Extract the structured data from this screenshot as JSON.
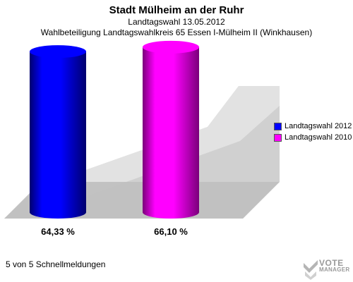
{
  "header": {
    "title": "Stadt Mülheim an der Ruhr",
    "subtitle1": "Landtagswahl 13.05.2012",
    "subtitle2": "Wahlbeteiligung Landtagswahlkreis 65  Essen I-Mülheim II (Winkhausen)"
  },
  "chart_data": {
    "type": "bar",
    "categories": [
      "Landtagswahl 2012",
      "Landtagswahl 2010"
    ],
    "series": [
      {
        "name": "Wahlbeteiligung",
        "values": [
          64.33,
          66.1
        ]
      }
    ],
    "data_labels": [
      "64,33 %",
      "66,10 %"
    ],
    "colors": [
      "#0000ff",
      "#ff00ff"
    ],
    "ylim": [
      0,
      70
    ],
    "legend": {
      "position": "right",
      "entries": [
        "Landtagswahl 2012",
        "Landtagswahl 2010"
      ]
    },
    "grid": false
  },
  "footer": {
    "text": "5 von 5 Schnellmeldungen"
  },
  "logo": {
    "line1": "VOTE",
    "line2": "MANAGER",
    "icon": "vote-manager-logo-icon"
  }
}
